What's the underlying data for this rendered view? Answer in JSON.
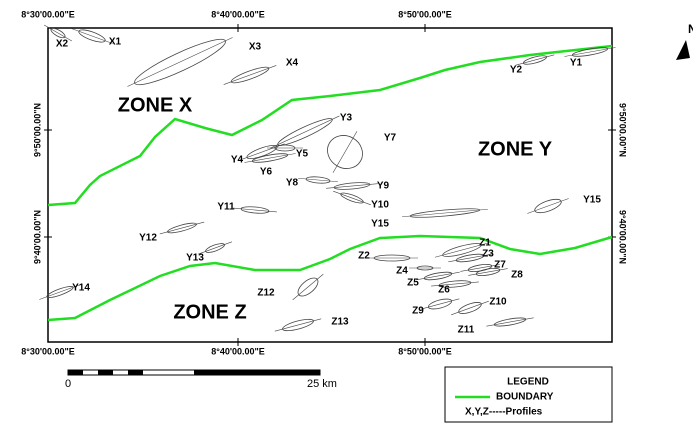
{
  "map": {
    "lon_labels": [
      "8°30'00.00\"E",
      "8°40'00.00\"E",
      "8°50'00.00\"E"
    ],
    "lat_labels": [
      "9°50'00.00\"N",
      "9°40'00.00\"N"
    ],
    "zones": [
      "ZONE X",
      "ZONE Y",
      "ZONE Z"
    ],
    "profiles": [
      "X1",
      "X2",
      "X3",
      "X4",
      "Y1",
      "Y2",
      "Y3",
      "Y4",
      "Y5",
      "Y6",
      "Y7",
      "Y8",
      "Y9",
      "Y10",
      "Y11",
      "Y12",
      "Y13",
      "Y14",
      "Y15",
      "Y15",
      "Z1",
      "Z2",
      "Z3",
      "Z4",
      "Z5",
      "Z6",
      "Z7",
      "Z8",
      "Z9",
      "Z10",
      "Z11",
      "Z12",
      "Z13"
    ],
    "north": "N",
    "scale": {
      "start": "0",
      "end": "25 km"
    },
    "legend": {
      "title": "LEGEND",
      "items": [
        "BOUNDARY",
        "X,Y,Z-----Profiles"
      ]
    }
  }
}
